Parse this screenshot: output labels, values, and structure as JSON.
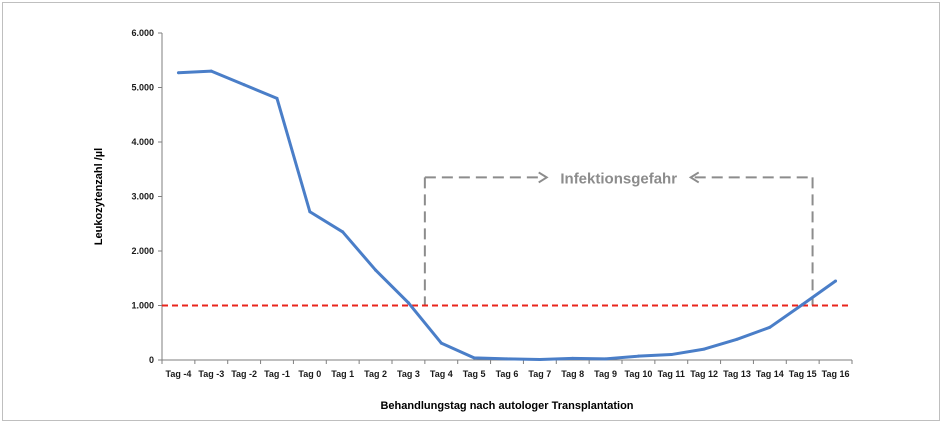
{
  "chart_data": {
    "type": "line",
    "xlabel": "Behandlungstag nach autologer Transplantation",
    "ylabel": "Leukozytenzahl /µl",
    "categories": [
      "Tag -4",
      "Tag -3",
      "Tag -2",
      "Tag -1",
      "Tag 0",
      "Tag 1",
      "Tag 2",
      "Tag 3",
      "Tag 4",
      "Tag 5",
      "Tag 6",
      "Tag 7",
      "Tag 8",
      "Tag 9",
      "Tag 10",
      "Tag 11",
      "Tag 12",
      "Tag 13",
      "Tag 14",
      "Tag 15",
      "Tag 16"
    ],
    "series": [
      {
        "values": [
          5270,
          5300,
          5050,
          4800,
          2720,
          2350,
          1650,
          1050,
          310,
          40,
          20,
          10,
          30,
          20,
          70,
          100,
          200,
          380,
          600,
          1020,
          1450
        ],
        "color": "#4a7ec8"
      }
    ],
    "threshold": {
      "value": 1000,
      "color": "#e8241c",
      "style": "dashed"
    },
    "yticks": [
      "0",
      "1.000",
      "2.000",
      "3.000",
      "4.000",
      "5.000",
      "6.000"
    ],
    "ylim": [
      0,
      6000
    ],
    "grid": false,
    "annotation": {
      "text": "Infektionsgefahr",
      "from_category": "Tag 3",
      "to_category": "Tag 15",
      "level": 3350,
      "color": "#8c8c8c"
    }
  }
}
